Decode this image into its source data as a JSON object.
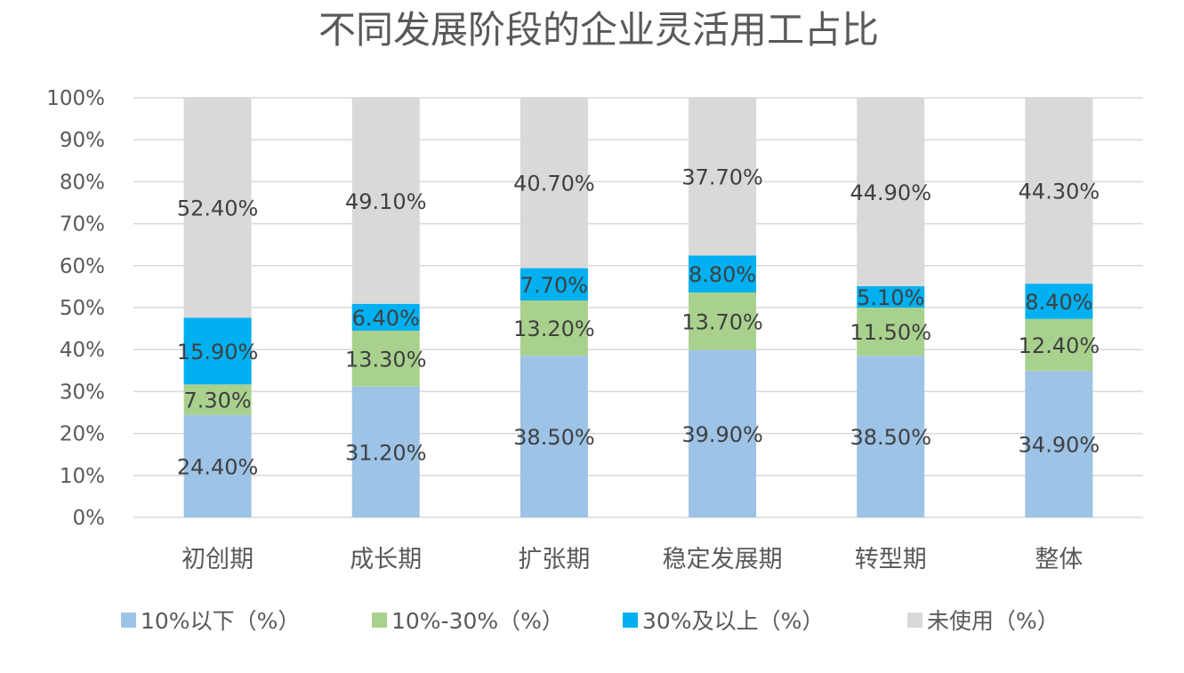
{
  "chart_data": {
    "type": "bar",
    "stacked": true,
    "title": "不同发展阶段的企业灵活用工占比",
    "xlabel": "",
    "ylabel": "",
    "ylim": [
      0,
      100
    ],
    "yticks": [
      "0%",
      "10%",
      "20%",
      "30%",
      "40%",
      "50%",
      "60%",
      "70%",
      "80%",
      "90%",
      "100%"
    ],
    "categories": [
      "初创期",
      "成长期",
      "扩张期",
      "稳定发展期",
      "转型期",
      "整体"
    ],
    "series": [
      {
        "name": "10%以下（%）",
        "color": "#9dc3e6",
        "values": [
          24.4,
          31.2,
          38.5,
          39.9,
          38.5,
          34.9
        ],
        "labels": [
          "24.40%",
          "31.20%",
          "38.50%",
          "39.90%",
          "38.50%",
          "34.90%"
        ]
      },
      {
        "name": "10%-30%（%）",
        "color": "#a9d18e",
        "values": [
          7.3,
          13.3,
          13.2,
          13.7,
          11.5,
          12.4
        ],
        "labels": [
          "7.30%",
          "13.30%",
          "13.20%",
          "13.70%",
          "11.50%",
          "12.40%"
        ]
      },
      {
        "name": "30%及以上（%）",
        "color": "#00b0f0",
        "values": [
          15.9,
          6.4,
          7.7,
          8.8,
          5.1,
          8.4
        ],
        "labels": [
          "15.90%",
          "6.40%",
          "7.70%",
          "8.80%",
          "5.10%",
          "8.40%"
        ]
      },
      {
        "name": "未使用（%）",
        "color": "#d9d9d9",
        "values": [
          52.4,
          49.1,
          40.7,
          37.7,
          44.9,
          44.3
        ],
        "labels": [
          "52.40%",
          "49.10%",
          "40.70%",
          "37.70%",
          "44.90%",
          "44.30%"
        ]
      }
    ],
    "grid": true,
    "legend_position": "bottom"
  }
}
